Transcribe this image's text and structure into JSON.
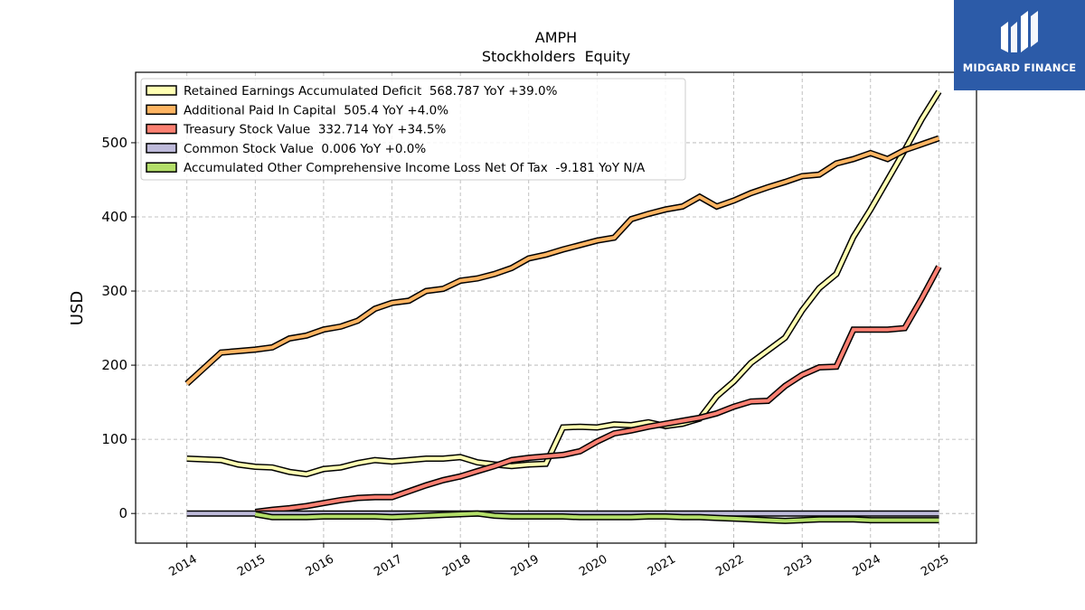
{
  "chart_data": {
    "type": "line",
    "title": "AMPH",
    "subtitle": "Stockholders  Equity",
    "ylabel": "USD",
    "xlabel": "",
    "ylim": [
      -40,
      595
    ],
    "xlim": [
      2013.25,
      2025.55
    ],
    "yticks": [
      0,
      100,
      200,
      300,
      400,
      500
    ],
    "xticks": [
      "2014",
      "2015",
      "2016",
      "2017",
      "2018",
      "2019",
      "2020",
      "2021",
      "2022",
      "2023",
      "2024",
      "2025"
    ],
    "grid": true,
    "legend_position": "top-left",
    "series": [
      {
        "name": "Retained Earnings Accumulated Deficit",
        "legend": "Retained Earnings Accumulated Deficit  568.787 YoY +39.0%",
        "color": "#ffffb3",
        "x": [
          2014.0,
          2014.5,
          2014.75,
          2015.0,
          2015.25,
          2015.5,
          2015.75,
          2016.0,
          2016.25,
          2016.5,
          2016.75,
          2017.0,
          2017.25,
          2017.5,
          2017.75,
          2018.0,
          2018.25,
          2018.5,
          2018.75,
          2019.0,
          2019.25,
          2019.5,
          2019.75,
          2020.0,
          2020.25,
          2020.5,
          2020.75,
          2021.0,
          2021.25,
          2021.5,
          2021.75,
          2022.0,
          2022.25,
          2022.5,
          2022.75,
          2023.0,
          2023.25,
          2023.5,
          2023.75,
          2024.0,
          2024.25,
          2024.5,
          2024.75,
          2025.0
        ],
        "values": [
          74,
          72,
          66,
          63,
          62,
          56,
          53,
          60,
          62,
          68,
          72,
          70,
          72,
          74,
          74,
          76,
          69,
          66,
          64,
          66,
          67,
          116,
          117,
          116,
          120,
          119,
          123,
          118,
          121,
          128,
          158,
          178,
          203,
          220,
          237,
          274,
          304,
          323,
          373,
          410,
          450,
          490,
          532,
          569
        ]
      },
      {
        "name": "Additional Paid In Capital",
        "legend": "Additional Paid In Capital  505.4 YoY +4.0%",
        "color": "#fdb462",
        "x": [
          2014.0,
          2014.5,
          2014.75,
          2015.0,
          2015.25,
          2015.5,
          2015.75,
          2016.0,
          2016.25,
          2016.5,
          2016.75,
          2017.0,
          2017.25,
          2017.5,
          2017.75,
          2018.0,
          2018.25,
          2018.5,
          2018.75,
          2019.0,
          2019.25,
          2019.5,
          2019.75,
          2020.0,
          2020.25,
          2020.5,
          2020.75,
          2021.0,
          2021.25,
          2021.5,
          2021.75,
          2022.0,
          2022.25,
          2022.5,
          2022.75,
          2023.0,
          2023.25,
          2023.5,
          2023.75,
          2024.0,
          2024.25,
          2024.5,
          2024.75,
          2025.0
        ],
        "values": [
          175,
          217,
          219,
          221,
          224,
          236,
          240,
          248,
          252,
          260,
          276,
          284,
          287,
          300,
          303,
          314,
          317,
          323,
          331,
          344,
          349,
          356,
          362,
          368,
          372,
          397,
          404,
          410,
          414,
          427,
          414,
          422,
          432,
          440,
          447,
          455,
          457,
          472,
          478,
          486,
          478,
          490,
          498,
          506
        ]
      },
      {
        "name": "Treasury Stock Value",
        "legend": "Treasury Stock Value  332.714 YoY +34.5%",
        "color": "#fb8072",
        "x": [
          2015.0,
          2015.25,
          2015.5,
          2015.75,
          2016.0,
          2016.25,
          2016.5,
          2016.75,
          2017.0,
          2017.25,
          2017.5,
          2017.75,
          2018.0,
          2018.25,
          2018.5,
          2018.75,
          2019.0,
          2019.25,
          2019.5,
          2019.75,
          2020.0,
          2020.25,
          2020.5,
          2020.75,
          2021.0,
          2021.25,
          2021.5,
          2021.75,
          2022.0,
          2022.25,
          2022.5,
          2022.75,
          2023.0,
          2023.25,
          2023.5,
          2023.75,
          2024.0,
          2024.25,
          2024.5,
          2024.75,
          2025.0
        ],
        "values": [
          2,
          5,
          7,
          10,
          14,
          18,
          21,
          22,
          22,
          30,
          38,
          45,
          50,
          57,
          64,
          72,
          75,
          77,
          79,
          84,
          97,
          108,
          112,
          117,
          121,
          125,
          129,
          135,
          144,
          151,
          152,
          172,
          187,
          197,
          198,
          248,
          248,
          248,
          250,
          290,
          333
        ]
      },
      {
        "name": "Common Stock Value",
        "legend": "Common Stock Value  0.006 YoY +0.0%",
        "color": "#bebada",
        "x": [
          2014.0,
          2015.0,
          2016.0,
          2017.0,
          2018.0,
          2019.0,
          2020.0,
          2021.0,
          2022.0,
          2023.0,
          2024.0,
          2025.0
        ],
        "values": [
          0.006,
          0.006,
          0.006,
          0.006,
          0.006,
          0.006,
          0.006,
          0.006,
          0.006,
          0.006,
          0.006,
          0.006
        ]
      },
      {
        "name": "Accumulated Other Comprehensive Income Loss Net Of Tax",
        "legend": "Accumulated Other Comprehensive Income Loss Net Of Tax  -9.181 YoY N/A",
        "color": "#b3de69",
        "x": [
          2015.0,
          2015.25,
          2015.5,
          2015.75,
          2016.0,
          2016.25,
          2016.5,
          2016.75,
          2017.0,
          2017.25,
          2017.5,
          2017.75,
          2018.0,
          2018.25,
          2018.5,
          2018.75,
          2019.0,
          2019.25,
          2019.5,
          2019.75,
          2020.0,
          2020.25,
          2020.5,
          2020.75,
          2021.0,
          2021.25,
          2021.5,
          2021.75,
          2022.0,
          2022.25,
          2022.5,
          2022.75,
          2023.0,
          2023.25,
          2023.5,
          2023.75,
          2024.0,
          2024.25,
          2024.5,
          2024.75,
          2025.0
        ],
        "values": [
          -1,
          -5,
          -5,
          -5,
          -4,
          -4,
          -4,
          -4,
          -5,
          -4,
          -3,
          -2,
          -1,
          0,
          -3,
          -4,
          -4,
          -4,
          -4,
          -5,
          -5,
          -5,
          -5,
          -4,
          -4,
          -5,
          -5,
          -6,
          -7,
          -8,
          -9,
          -10,
          -9,
          -8,
          -8,
          -8,
          -9,
          -9,
          -9,
          -9,
          -9
        ]
      }
    ]
  },
  "logo": {
    "name": "MIDGARD FINANCE",
    "bg_color": "#2c5ba8"
  }
}
